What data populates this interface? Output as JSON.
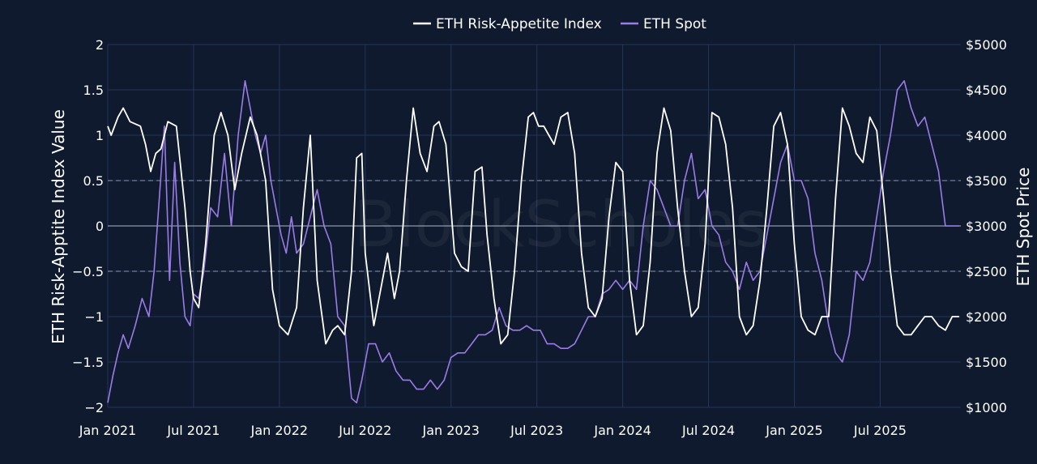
{
  "chart_data": {
    "type": "line",
    "title": "",
    "watermark": "BlockScholes",
    "legend_position": "top-center",
    "x_tick_labels": [
      "Jan 2021",
      "Jul 2021",
      "Jan 2022",
      "Jul 2022",
      "Jan 2023",
      "Jul 2023",
      "Jan 2024",
      "Jul 2024",
      "Jan 2025",
      "Jul 2025"
    ],
    "x_tick_positions": [
      2021.0,
      2021.5,
      2022.0,
      2022.5,
      2023.0,
      2023.5,
      2024.0,
      2024.5,
      2025.0,
      2025.5
    ],
    "xlim": [
      2021.0,
      2025.97
    ],
    "y_left": {
      "label": "ETH Risk-Apptite Index Value",
      "lim": [
        -2,
        2
      ],
      "ticks": [
        -2,
        -1.5,
        -1,
        -0.5,
        0,
        0.5,
        1,
        1.5,
        2
      ],
      "tick_labels": [
        "−2",
        "−1.5",
        "−1",
        "−0.5",
        "0",
        "0.5",
        "1",
        "1.5",
        "2"
      ],
      "dashed_lines": [
        0.5,
        -0.5
      ],
      "solid_lines": [
        0
      ]
    },
    "y_right": {
      "label": "ETH Spot Price",
      "lim": [
        1000,
        5000
      ],
      "ticks": [
        1000,
        1500,
        2000,
        2500,
        3000,
        3500,
        4000,
        4500,
        5000
      ],
      "tick_labels": [
        "$1000",
        "$1500",
        "$2000",
        "$2500",
        "$3000",
        "$3500",
        "$4000",
        "$4500",
        "$5000"
      ]
    },
    "series": [
      {
        "name": "ETH Risk-Appetite Index",
        "axis": "left",
        "color": "#ffffff",
        "x": [
          2021.0,
          2021.02,
          2021.06,
          2021.09,
          2021.13,
          2021.19,
          2021.22,
          2021.25,
          2021.28,
          2021.31,
          2021.35,
          2021.4,
          2021.45,
          2021.48,
          2021.5,
          2021.53,
          2021.57,
          2021.62,
          2021.66,
          2021.7,
          2021.74,
          2021.78,
          2021.83,
          2021.87,
          2021.92,
          2021.96,
          2022.0,
          2022.05,
          2022.1,
          2022.14,
          2022.18,
          2022.22,
          2022.27,
          2022.31,
          2022.34,
          2022.38,
          2022.42,
          2022.45,
          2022.48,
          2022.5,
          2022.55,
          2022.59,
          2022.63,
          2022.67,
          2022.7,
          2022.74,
          2022.78,
          2022.82,
          2022.86,
          2022.9,
          2022.93,
          2022.97,
          2023.02,
          2023.06,
          2023.1,
          2023.14,
          2023.18,
          2023.21,
          2023.25,
          2023.29,
          2023.33,
          2023.37,
          2023.41,
          2023.45,
          2023.48,
          2023.51,
          2023.54,
          2023.57,
          2023.6,
          2023.64,
          2023.68,
          2023.72,
          2023.76,
          2023.8,
          2023.84,
          2023.88,
          2023.92,
          2023.96,
          2024.0,
          2024.04,
          2024.08,
          2024.12,
          2024.16,
          2024.2,
          2024.24,
          2024.28,
          2024.32,
          2024.36,
          2024.4,
          2024.44,
          2024.48,
          2024.52,
          2024.56,
          2024.6,
          2024.64,
          2024.68,
          2024.72,
          2024.76,
          2024.8,
          2024.84,
          2024.88,
          2024.92,
          2024.96,
          2025.0,
          2025.04,
          2025.08,
          2025.12,
          2025.16,
          2025.2,
          2025.24,
          2025.28,
          2025.32,
          2025.36,
          2025.4,
          2025.44,
          2025.48,
          2025.52,
          2025.56,
          2025.6,
          2025.64,
          2025.68,
          2025.72,
          2025.76,
          2025.8,
          2025.84,
          2025.88,
          2025.92,
          2025.96
        ],
        "values": [
          1.1,
          1.0,
          1.2,
          1.3,
          1.15,
          1.1,
          0.9,
          0.6,
          0.8,
          0.85,
          1.15,
          1.1,
          0.2,
          -0.5,
          -0.8,
          -0.9,
          -0.2,
          1.0,
          1.25,
          1.0,
          0.4,
          0.8,
          1.2,
          1.0,
          0.5,
          -0.7,
          -1.1,
          -1.2,
          -0.9,
          0.2,
          1.0,
          -0.6,
          -1.3,
          -1.15,
          -1.1,
          -1.2,
          -0.5,
          0.75,
          0.8,
          -0.3,
          -1.1,
          -0.7,
          -0.3,
          -0.8,
          -0.5,
          0.5,
          1.3,
          0.8,
          0.6,
          1.1,
          1.15,
          0.9,
          -0.3,
          -0.45,
          -0.5,
          0.6,
          0.65,
          -0.1,
          -0.8,
          -1.3,
          -1.2,
          -0.5,
          0.5,
          1.2,
          1.25,
          1.1,
          1.1,
          1.0,
          0.9,
          1.2,
          1.25,
          0.8,
          -0.3,
          -0.9,
          -1.0,
          -0.8,
          0.1,
          0.7,
          0.6,
          -0.6,
          -1.2,
          -1.1,
          -0.4,
          0.8,
          1.3,
          1.05,
          0.2,
          -0.5,
          -1.0,
          -0.9,
          -0.2,
          1.25,
          1.2,
          0.9,
          0.2,
          -1.0,
          -1.2,
          -1.1,
          -0.6,
          0.2,
          1.1,
          1.25,
          0.9,
          -0.2,
          -1.0,
          -1.15,
          -1.2,
          -1.0,
          -1.0,
          0.3,
          1.3,
          1.1,
          0.8,
          0.7,
          1.2,
          1.05,
          0.3,
          -0.5,
          -1.1,
          -1.2,
          -1.2,
          -1.1,
          -1.0,
          -1.0,
          -1.1,
          -1.15,
          -1.0,
          -1.0
        ]
      },
      {
        "name": "ETH Spot",
        "axis": "right",
        "color": "#9b7be8",
        "x": [
          2021.0,
          2021.03,
          2021.06,
          2021.09,
          2021.12,
          2021.16,
          2021.2,
          2021.24,
          2021.27,
          2021.3,
          2021.33,
          2021.36,
          2021.39,
          2021.42,
          2021.45,
          2021.48,
          2021.5,
          2021.53,
          2021.56,
          2021.6,
          2021.64,
          2021.68,
          2021.72,
          2021.76,
          2021.8,
          2021.83,
          2021.86,
          2021.89,
          2021.92,
          2021.95,
          2021.98,
          2022.01,
          2022.04,
          2022.07,
          2022.1,
          2022.14,
          2022.18,
          2022.22,
          2022.26,
          2022.3,
          2022.34,
          2022.38,
          2022.42,
          2022.45,
          2022.48,
          2022.52,
          2022.56,
          2022.6,
          2022.64,
          2022.68,
          2022.72,
          2022.76,
          2022.8,
          2022.84,
          2022.88,
          2022.92,
          2022.96,
          2023.0,
          2023.04,
          2023.08,
          2023.12,
          2023.16,
          2023.2,
          2023.24,
          2023.28,
          2023.32,
          2023.36,
          2023.4,
          2023.44,
          2023.48,
          2023.52,
          2023.56,
          2023.6,
          2023.64,
          2023.68,
          2023.72,
          2023.76,
          2023.8,
          2023.84,
          2023.88,
          2023.92,
          2023.96,
          2024.0,
          2024.04,
          2024.08,
          2024.12,
          2024.16,
          2024.2,
          2024.24,
          2024.28,
          2024.32,
          2024.36,
          2024.4,
          2024.44,
          2024.48,
          2024.52,
          2024.56,
          2024.6,
          2024.64,
          2024.68,
          2024.72,
          2024.76,
          2024.8,
          2024.84,
          2024.88,
          2024.92,
          2024.96,
          2025.0,
          2025.04,
          2025.08,
          2025.12,
          2025.16,
          2025.2,
          2025.24,
          2025.28,
          2025.32,
          2025.36,
          2025.4,
          2025.44,
          2025.48,
          2025.52,
          2025.56,
          2025.6,
          2025.64,
          2025.68,
          2025.72,
          2025.76,
          2025.8,
          2025.84,
          2025.88,
          2025.92,
          2025.96
        ],
        "values": [
          1050,
          1350,
          1600,
          1800,
          1650,
          1900,
          2200,
          2000,
          2500,
          3300,
          4100,
          2400,
          3700,
          2600,
          2000,
          1900,
          2250,
          2200,
          2500,
          3200,
          3100,
          3800,
          3000,
          4000,
          4600,
          4300,
          4000,
          3800,
          4000,
          3500,
          3200,
          2900,
          2700,
          3100,
          2700,
          2800,
          3100,
          3400,
          3000,
          2800,
          2000,
          1900,
          1100,
          1050,
          1300,
          1700,
          1700,
          1500,
          1600,
          1400,
          1300,
          1300,
          1200,
          1200,
          1300,
          1200,
          1300,
          1550,
          1600,
          1600,
          1700,
          1800,
          1800,
          1850,
          2100,
          1900,
          1850,
          1850,
          1900,
          1850,
          1850,
          1700,
          1700,
          1650,
          1650,
          1700,
          1850,
          2000,
          2000,
          2250,
          2300,
          2400,
          2300,
          2400,
          2300,
          3000,
          3500,
          3400,
          3200,
          3000,
          3000,
          3500,
          3800,
          3300,
          3400,
          3000,
          2900,
          2600,
          2500,
          2300,
          2600,
          2400,
          2500,
          2900,
          3300,
          3700,
          3900,
          3500,
          3500,
          3300,
          2700,
          2400,
          1900,
          1600,
          1500,
          1800,
          2500,
          2400,
          2600,
          3100,
          3600,
          4000,
          4500,
          4600,
          4300,
          4100,
          4200,
          3900,
          3600,
          3000,
          3000,
          3000
        ]
      }
    ]
  }
}
